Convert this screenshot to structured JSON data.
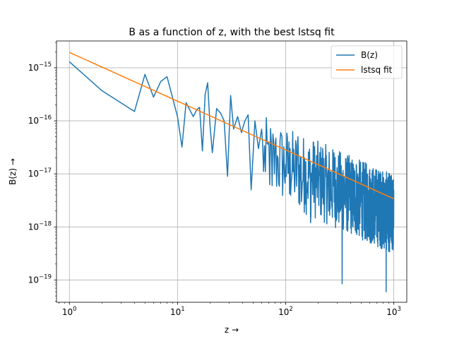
{
  "chart_data": {
    "type": "line",
    "title": "B as a function of z, with the best lstsq fit",
    "xlabel": "z  →",
    "ylabel": "B(z)  →",
    "xscale": "log",
    "yscale": "log",
    "xlim": [
      0.76,
      1320
    ],
    "ylim": [
      3.8e-20,
      3.2e-15
    ],
    "grid": true,
    "legend_position": "top-right",
    "x_ticks": [
      {
        "base": "10",
        "exp": "0"
      },
      {
        "base": "10",
        "exp": "1"
      },
      {
        "base": "10",
        "exp": "2"
      },
      {
        "base": "10",
        "exp": "3"
      }
    ],
    "y_ticks": [
      {
        "base": "10",
        "exp": "−19"
      },
      {
        "base": "10",
        "exp": "−18"
      },
      {
        "base": "10",
        "exp": "−17"
      },
      {
        "base": "10",
        "exp": "−16"
      },
      {
        "base": "10",
        "exp": "−15"
      }
    ],
    "series": [
      {
        "name": "B(z)",
        "color": "#1f77b4",
        "description_points": [
          [
            1,
            1.3e-15
          ],
          [
            2,
            3.7e-16
          ],
          [
            4,
            1.5e-16
          ],
          [
            5,
            7.5e-16
          ],
          [
            6,
            2.8e-16
          ],
          [
            7,
            5.5e-16
          ],
          [
            8,
            6.8e-16
          ],
          [
            10,
            1.2e-16
          ],
          [
            11,
            3.2e-17
          ],
          [
            12,
            2.2e-16
          ],
          [
            13,
            1.6e-16
          ],
          [
            14,
            1.2e-16
          ],
          [
            15,
            1.6e-16
          ],
          [
            16,
            1.8e-16
          ],
          [
            17,
            2.7e-17
          ],
          [
            18,
            3.1e-16
          ],
          [
            19,
            5.2e-16
          ],
          [
            20,
            8e-17
          ],
          [
            21,
            2.5e-17
          ],
          [
            23,
            1.7e-16
          ],
          [
            25,
            1.4e-16
          ],
          [
            27,
            1e-16
          ],
          [
            29,
            9e-18
          ],
          [
            31,
            3e-16
          ],
          [
            33,
            7e-17
          ],
          [
            36,
            1.2e-16
          ],
          [
            39,
            6e-17
          ],
          [
            42,
            1e-16
          ],
          [
            45,
            1.3e-16
          ],
          [
            48,
            5e-18
          ],
          [
            52,
            1e-16
          ],
          [
            56,
            3e-17
          ],
          [
            60,
            7e-17
          ],
          [
            65,
            1.1e-17
          ],
          [
            70,
            4e-17
          ],
          [
            75,
            6e-18
          ],
          [
            80,
            3.5e-17
          ],
          [
            85,
            2e-17
          ],
          [
            90,
            6e-17
          ],
          [
            100,
            1.5e-17
          ],
          [
            110,
            3e-17
          ],
          [
            120,
            9e-18
          ],
          [
            130,
            5e-17
          ],
          [
            140,
            3e-18
          ],
          [
            150,
            2e-17
          ],
          [
            160,
            7e-18
          ],
          [
            170,
            1.2e-18
          ],
          [
            180,
            4e-17
          ],
          [
            200,
            1e-17
          ],
          [
            220,
            3e-17
          ],
          [
            250,
            2e-18
          ],
          [
            280,
            2.5e-17
          ],
          [
            300,
            6e-18
          ],
          [
            320,
            2e-17
          ],
          [
            333,
            8.5e-20
          ],
          [
            360,
            1.8e-17
          ],
          [
            400,
            5e-18
          ],
          [
            420,
            1e-18
          ],
          [
            450,
            1.5e-17
          ],
          [
            500,
            3.5e-18
          ],
          [
            550,
            6e-19
          ],
          [
            600,
            1.2e-17
          ],
          [
            650,
            3e-18
          ],
          [
            700,
            1e-18
          ],
          [
            750,
            8e-18
          ],
          [
            800,
            2e-18
          ],
          [
            850,
            6e-20
          ],
          [
            900,
            7e-18
          ],
          [
            950,
            1.5e-18
          ],
          [
            1000,
            5e-18
          ]
        ]
      },
      {
        "name": "lstsq fit",
        "color": "#ff7f0e",
        "x": [
          1,
          1000
        ],
        "y": [
          1.95e-15,
          3.4e-18
        ]
      }
    ]
  }
}
